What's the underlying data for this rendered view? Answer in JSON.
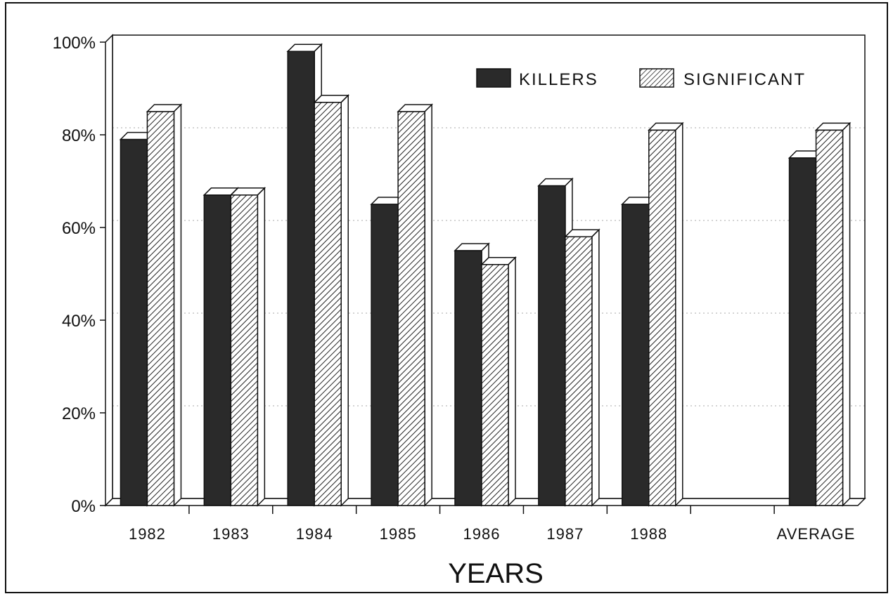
{
  "chart_data": {
    "type": "bar",
    "categories": [
      "1982",
      "1983",
      "1984",
      "1985",
      "1986",
      "1987",
      "1988",
      "",
      "AVERAGE"
    ],
    "series": [
      {
        "name": "KILLERS",
        "values": [
          79,
          67,
          98,
          65,
          55,
          69,
          65,
          null,
          75
        ]
      },
      {
        "name": "SIGNIFICANT",
        "values": [
          85,
          67,
          87,
          85,
          52,
          58,
          81,
          null,
          81
        ]
      }
    ],
    "title": "",
    "xlabel": "YEARS",
    "ylabel": "",
    "ylim": [
      0,
      100
    ],
    "yticks": [
      "0%",
      "20%",
      "40%",
      "60%",
      "80%",
      "100%"
    ],
    "grid": true,
    "legend_position": "top-right",
    "three_d": true,
    "colors": {
      "killers": "#2a2a2a",
      "significant_hatch": "#222222",
      "background": "#ffffff",
      "axis": "#111111"
    }
  }
}
